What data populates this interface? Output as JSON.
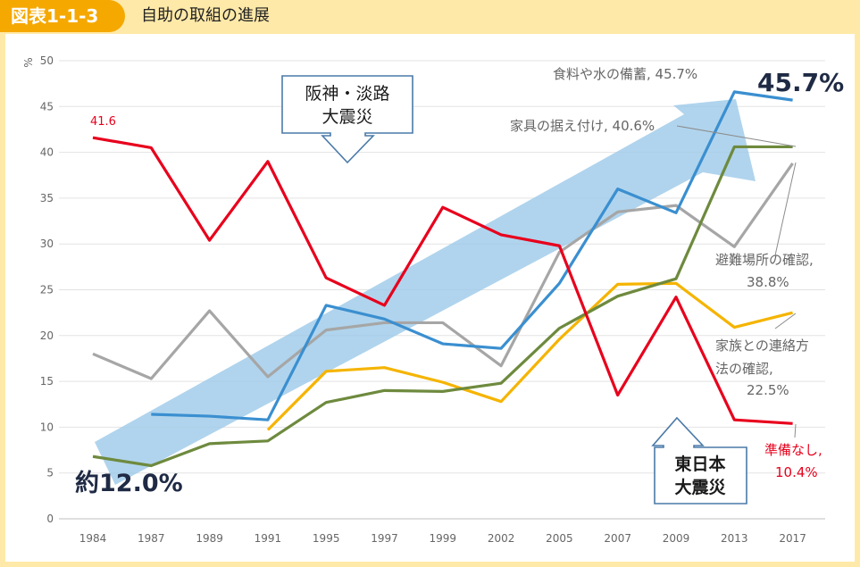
{
  "header": {
    "figure_label": "図表1-1-3",
    "title": "自助の取組の進展"
  },
  "chart_data": {
    "type": "line",
    "ylabel": "%",
    "ylim": [
      0,
      50
    ],
    "yticks": [
      0,
      5,
      10,
      15,
      20,
      25,
      30,
      35,
      40,
      45,
      50
    ],
    "grid": true,
    "categories": [
      "1984",
      "1987",
      "1989",
      "1991",
      "1995",
      "1997",
      "1999",
      "2002",
      "2005",
      "2007",
      "2009",
      "2013",
      "2017"
    ],
    "series": [
      {
        "name": "準備なし",
        "color": "#e8001c",
        "values": [
          41.6,
          40.5,
          30.4,
          39.0,
          26.3,
          23.3,
          34.0,
          31.0,
          29.8,
          13.5,
          24.2,
          10.8,
          10.4
        ]
      },
      {
        "name": "食料や水の備蓄",
        "color": "#3a8fd0",
        "values": [
          null,
          11.4,
          11.2,
          10.8,
          23.3,
          21.8,
          19.1,
          18.6,
          25.7,
          36.0,
          33.4,
          46.6,
          45.7
        ]
      },
      {
        "name": "家具の据え付け",
        "color": "#6e8a3e",
        "values": [
          6.8,
          5.8,
          8.2,
          8.5,
          12.7,
          14.0,
          13.9,
          14.8,
          20.8,
          24.3,
          26.2,
          40.6,
          40.6
        ]
      },
      {
        "name": "避難場所の確認",
        "color": "#a6a6a6",
        "values": [
          18.0,
          15.3,
          22.7,
          15.5,
          20.6,
          21.4,
          21.4,
          16.7,
          29.1,
          33.5,
          34.2,
          29.7,
          38.8
        ]
      },
      {
        "name": "家族との連絡方法の確認",
        "color": "#f5b400",
        "values": [
          null,
          null,
          null,
          9.7,
          16.1,
          16.5,
          14.9,
          12.8,
          19.6,
          25.6,
          25.7,
          20.9,
          22.5
        ]
      }
    ],
    "data_labels": [
      {
        "text": "41.6",
        "color": "#e8001c"
      },
      {
        "text": "食料や水の備蓄, 45.7%",
        "color": "#666666"
      },
      {
        "text": "家具の据え付け, 40.6%",
        "color": "#666666"
      },
      {
        "text": "避難場所の確認,",
        "color": "#666666"
      },
      {
        "text": "38.8%",
        "color": "#666666"
      },
      {
        "text": "家族との連絡方",
        "color": "#666666"
      },
      {
        "text": "法の確認,",
        "color": "#666666"
      },
      {
        "text": "22.5%",
        "color": "#666666"
      },
      {
        "text": "準備なし,",
        "color": "#e8001c"
      },
      {
        "text": "10.4%",
        "color": "#e8001c"
      }
    ],
    "annotations": {
      "start_value": "約12.0%",
      "end_value": "45.7%",
      "callout_hanshin_line1": "阪神・淡路",
      "callout_hanshin_line2": "大震災",
      "callout_higashi_line1": "東日本",
      "callout_higashi_line2": "大震災"
    }
  }
}
